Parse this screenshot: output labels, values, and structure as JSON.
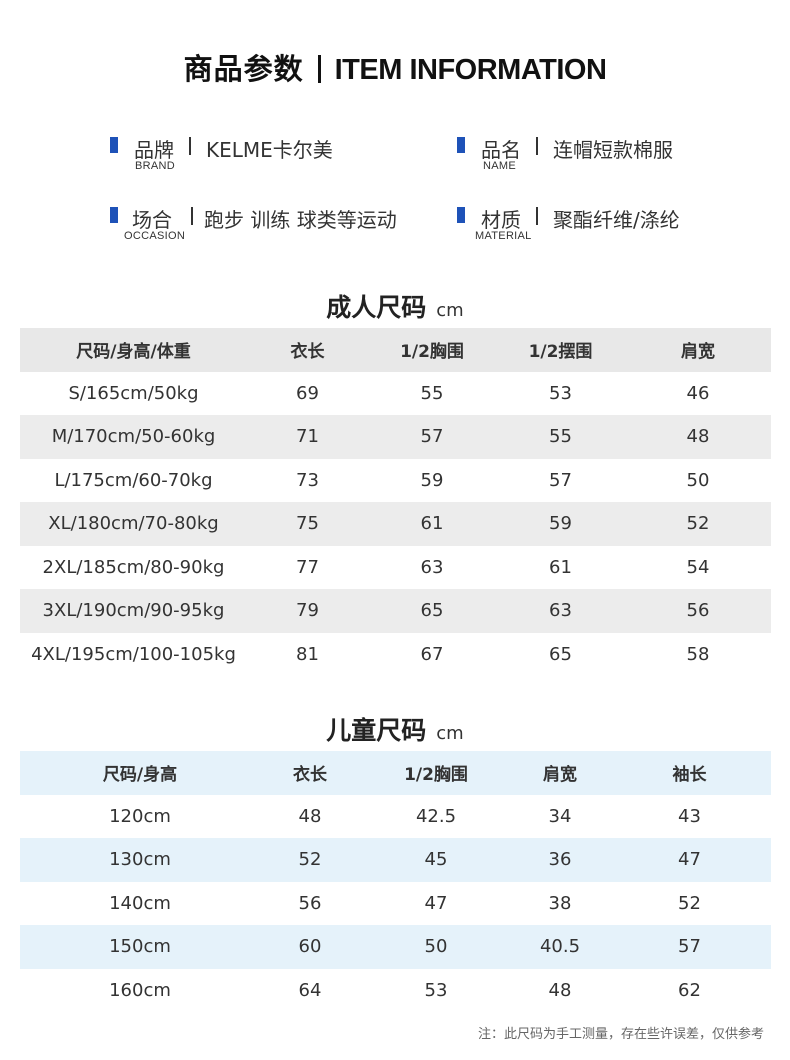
{
  "header": {
    "title_cn": "商品参数",
    "title_en": "ITEM INFORMATION"
  },
  "attributes": [
    {
      "label_cn": "品牌",
      "label_en": "BRAND",
      "value": "KELME卡尔美"
    },
    {
      "label_cn": "品名",
      "label_en": "NAME",
      "value": "连帽短款棉服"
    },
    {
      "label_cn": "场合",
      "label_en": "OCCASION",
      "value": "跑步 训练 球类等运动"
    },
    {
      "label_cn": "材质",
      "label_en": "MATERIAL",
      "value": "聚酯纤维/涤纶"
    }
  ],
  "adult": {
    "title": "成人尺码",
    "unit": "cm",
    "headers": [
      "尺码/身高/体重",
      "衣长",
      "1/2胸围",
      "1/2摆围",
      "肩宽"
    ],
    "rows": [
      [
        "S/165cm/50kg",
        "69",
        "55",
        "53",
        "46"
      ],
      [
        "M/170cm/50-60kg",
        "71",
        "57",
        "55",
        "48"
      ],
      [
        "L/175cm/60-70kg",
        "73",
        "59",
        "57",
        "50"
      ],
      [
        "XL/180cm/70-80kg",
        "75",
        "61",
        "59",
        "52"
      ],
      [
        "2XL/185cm/80-90kg",
        "77",
        "63",
        "61",
        "54"
      ],
      [
        "3XL/190cm/90-95kg",
        "79",
        "65",
        "63",
        "56"
      ],
      [
        "4XL/195cm/100-105kg",
        "81",
        "67",
        "65",
        "58"
      ]
    ]
  },
  "kids": {
    "title": "儿童尺码",
    "unit": "cm",
    "headers": [
      "尺码/身高",
      "衣长",
      "1/2胸围",
      "肩宽",
      "袖长"
    ],
    "rows": [
      [
        "120cm",
        "48",
        "42.5",
        "34",
        "43"
      ],
      [
        "130cm",
        "52",
        "45",
        "36",
        "47"
      ],
      [
        "140cm",
        "56",
        "47",
        "38",
        "52"
      ],
      [
        "150cm",
        "60",
        "50",
        "40.5",
        "57"
      ],
      [
        "160cm",
        "64",
        "53",
        "48",
        "62"
      ]
    ]
  },
  "note": "注：此尺码为手工测量，存在些许误差，仅供参考",
  "colors": {
    "accent": "#1e52b8",
    "adult_stripe": "#ececec",
    "kids_stripe": "#e5f2fa"
  }
}
